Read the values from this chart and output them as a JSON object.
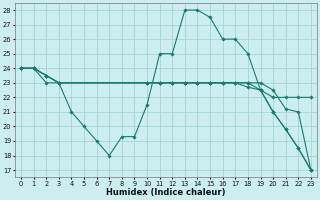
{
  "xlabel": "Humidex (Indice chaleur)",
  "bg_color": "#cceef0",
  "grid_color": "#a8d4d8",
  "line_color": "#1a7a6e",
  "xlim": [
    -0.5,
    23.5
  ],
  "ylim": [
    16.5,
    28.5
  ],
  "xticks": [
    0,
    1,
    2,
    3,
    4,
    5,
    6,
    7,
    8,
    9,
    10,
    11,
    12,
    13,
    14,
    15,
    16,
    17,
    18,
    19,
    20,
    21,
    22,
    23
  ],
  "yticks": [
    17,
    18,
    19,
    20,
    21,
    22,
    23,
    24,
    25,
    26,
    27,
    28
  ],
  "lines": [
    {
      "x": [
        0,
        1,
        2,
        3,
        4,
        5,
        6,
        7,
        8,
        9,
        10,
        11,
        12,
        13,
        14,
        15,
        16,
        17,
        18,
        19,
        20,
        21,
        22,
        23
      ],
      "y": [
        24,
        24,
        23,
        23,
        21,
        20,
        19,
        18,
        19.3,
        19.3,
        21.5,
        25,
        25,
        28,
        28,
        27.5,
        26,
        26,
        25,
        22.5,
        21,
        19.8,
        18.5,
        17
      ]
    },
    {
      "x": [
        0,
        1,
        2,
        3,
        10,
        11,
        12,
        13,
        14,
        15,
        16,
        17,
        18,
        19,
        20,
        21,
        22,
        23
      ],
      "y": [
        24,
        24,
        23.5,
        23,
        23,
        23,
        23,
        23,
        23,
        23,
        23,
        23,
        22.7,
        22.5,
        22,
        22,
        22,
        22
      ]
    },
    {
      "x": [
        0,
        1,
        2,
        3,
        10,
        11,
        12,
        13,
        14,
        15,
        16,
        17,
        18,
        19,
        20,
        21,
        22,
        23
      ],
      "y": [
        24,
        24,
        23.5,
        23,
        23,
        23,
        23,
        23,
        23,
        23,
        23,
        23,
        23,
        22.5,
        21,
        19.8,
        18.5,
        17
      ]
    },
    {
      "x": [
        0,
        1,
        2,
        3,
        10,
        11,
        12,
        13,
        14,
        15,
        16,
        17,
        18,
        19,
        20,
        21,
        22,
        23
      ],
      "y": [
        24,
        24,
        23.5,
        23,
        23,
        23,
        23,
        23,
        23,
        23,
        23,
        23,
        23,
        23,
        22.5,
        21.2,
        21,
        17
      ]
    }
  ],
  "marker": "D",
  "markersize": 1.8,
  "linewidth": 0.8
}
